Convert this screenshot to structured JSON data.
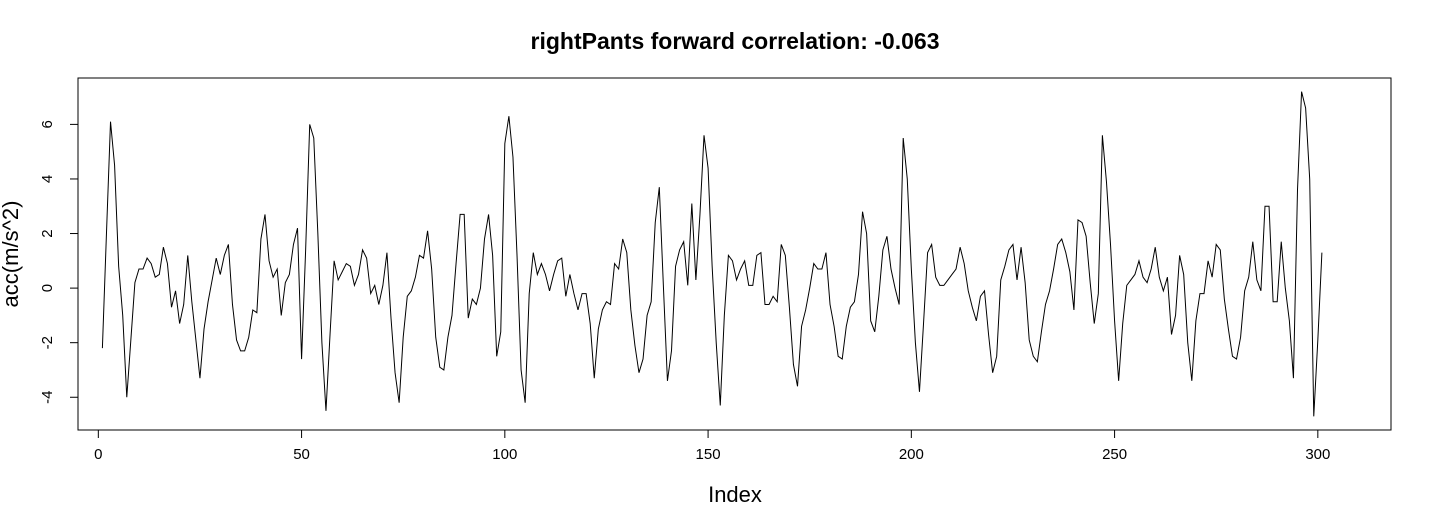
{
  "chart_data": {
    "type": "line",
    "title": "rightPants forward correlation: -0.063",
    "xlabel": "Index",
    "ylabel": "acc(m/s^2)",
    "xlim": [
      -5.0,
      318.0
    ],
    "ylim": [
      -5.2,
      7.7
    ],
    "xticks": [
      0,
      50,
      100,
      150,
      200,
      250,
      300
    ],
    "yticks": [
      -4,
      -2,
      0,
      2,
      4,
      6
    ],
    "grid": false,
    "series": [
      {
        "values": [
          -2.2,
          2.0,
          6.1,
          4.5,
          0.8,
          -1.0,
          -4.0,
          -1.9,
          0.2,
          0.7,
          0.7,
          1.1,
          0.9,
          0.4,
          0.5,
          1.5,
          0.9,
          -0.7,
          -0.1,
          -1.3,
          -0.6,
          1.2,
          -0.5,
          -1.9,
          -3.3,
          -1.5,
          -0.5,
          0.3,
          1.1,
          0.5,
          1.2,
          1.6,
          -0.6,
          -1.9,
          -2.3,
          -2.3,
          -1.8,
          -0.8,
          -0.9,
          1.8,
          2.7,
          1.0,
          0.4,
          0.7,
          -1.0,
          0.2,
          0.5,
          1.6,
          2.2,
          -2.6,
          1.4,
          6.0,
          5.5,
          2.0,
          -2.0,
          -4.5,
          -1.7,
          1.0,
          0.3,
          0.6,
          0.9,
          0.8,
          0.1,
          0.5,
          1.4,
          1.1,
          -0.2,
          0.1,
          -0.6,
          0.1,
          1.3,
          -1.1,
          -3.1,
          -4.2,
          -1.8,
          -0.3,
          -0.1,
          0.4,
          1.2,
          1.1,
          2.1,
          0.7,
          -1.8,
          -2.9,
          -3.0,
          -1.8,
          -1.0,
          0.9,
          2.7,
          2.7,
          -1.1,
          -0.4,
          -0.6,
          0.0,
          1.8,
          2.7,
          1.2,
          -2.5,
          -1.6,
          5.3,
          6.3,
          4.8,
          1.2,
          -3.0,
          -4.2,
          -0.2,
          1.3,
          0.5,
          0.9,
          0.5,
          -0.1,
          0.5,
          1.0,
          1.1,
          -0.3,
          0.5,
          -0.2,
          -0.8,
          -0.2,
          -0.2,
          -1.3,
          -3.3,
          -1.5,
          -0.8,
          -0.5,
          -0.6,
          0.9,
          0.7,
          1.8,
          1.3,
          -0.8,
          -2.1,
          -3.1,
          -2.6,
          -1.0,
          -0.5,
          2.4,
          3.7,
          0.1,
          -3.4,
          -2.3,
          0.8,
          1.4,
          1.7,
          0.1,
          3.1,
          0.3,
          2.7,
          5.6,
          4.4,
          0.8,
          -2.0,
          -4.3,
          -1.0,
          1.2,
          1.0,
          0.3,
          0.7,
          1.0,
          0.1,
          0.1,
          1.2,
          1.3,
          -0.6,
          -0.6,
          -0.3,
          -0.5,
          1.6,
          1.2,
          -0.7,
          -2.8,
          -3.6,
          -1.4,
          -0.8,
          0.0,
          0.9,
          0.7,
          0.7,
          1.3,
          -0.6,
          -1.4,
          -2.5,
          -2.6,
          -1.4,
          -0.7,
          -0.5,
          0.5,
          2.8,
          2.0,
          -1.2,
          -1.6,
          -0.3,
          1.4,
          1.9,
          0.7,
          0.0,
          -0.6,
          5.5,
          4.0,
          0.7,
          -2.0,
          -3.8,
          -1.3,
          1.3,
          1.6,
          0.4,
          0.1,
          0.1,
          0.3,
          0.5,
          0.7,
          1.5,
          0.9,
          -0.1,
          -0.7,
          -1.2,
          -0.3,
          -0.1,
          -1.7,
          -3.1,
          -2.5,
          0.3,
          0.8,
          1.4,
          1.6,
          0.3,
          1.5,
          0.2,
          -1.9,
          -2.5,
          -2.7,
          -1.6,
          -0.6,
          -0.1,
          0.7,
          1.6,
          1.8,
          1.3,
          0.6,
          -0.8,
          2.5,
          2.4,
          1.9,
          0.2,
          -1.3,
          -0.2,
          5.6,
          3.9,
          1.6,
          -1.2,
          -3.4,
          -1.3,
          0.1,
          0.3,
          0.5,
          1.0,
          0.4,
          0.2,
          0.7,
          1.5,
          0.4,
          -0.1,
          0.4,
          -1.7,
          -1.0,
          1.2,
          0.5,
          -2.0,
          -3.4,
          -1.2,
          -0.2,
          -0.2,
          1.0,
          0.4,
          1.6,
          1.4,
          -0.4,
          -1.5,
          -2.5,
          -2.6,
          -1.8,
          -0.1,
          0.4,
          1.7,
          0.3,
          -0.1,
          3.0,
          3.0,
          -0.5,
          -0.5,
          1.7,
          0.0,
          -1.2,
          -3.3,
          3.6,
          7.2,
          6.6,
          4.0,
          -4.7,
          -1.9,
          1.3
        ]
      }
    ]
  },
  "colors": {
    "line": "#000000",
    "axis": "#000000",
    "background": "#ffffff"
  }
}
